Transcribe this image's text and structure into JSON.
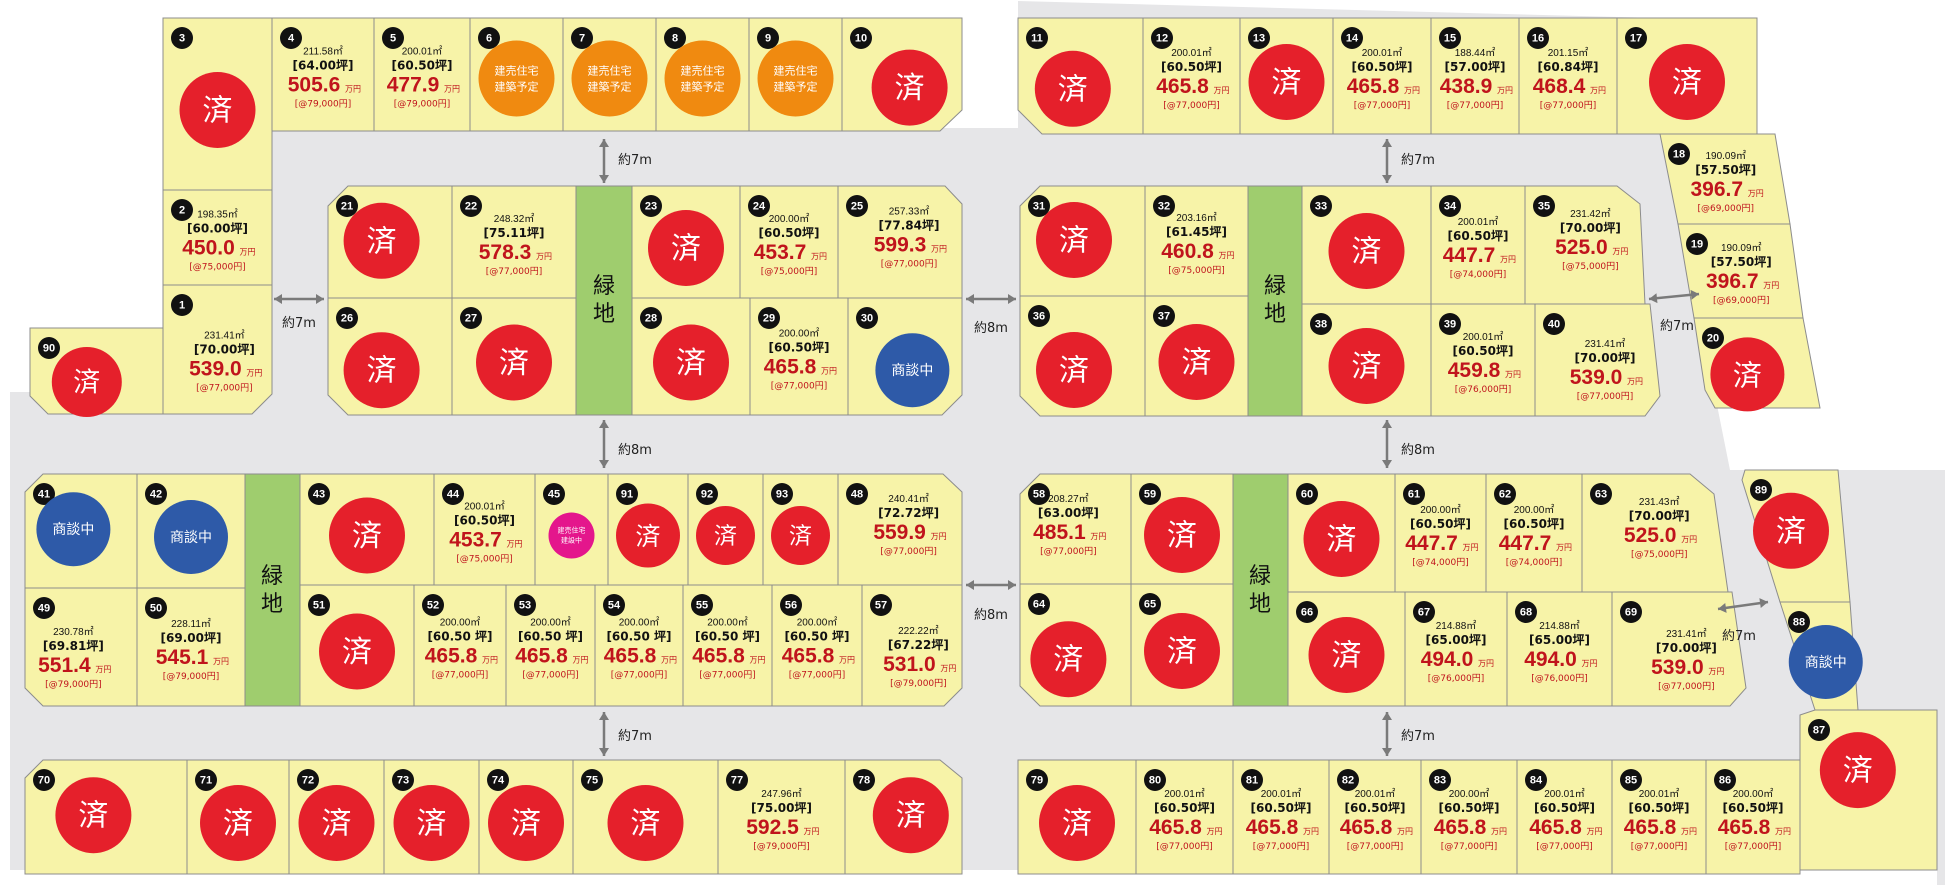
{
  "legend": {
    "sold": "済",
    "negotiating": "商談中",
    "planned": "建売住宅\n建築予定",
    "under_construction": "建売住宅\n建設中",
    "green_space": "緑地",
    "price_unit": "万円"
  },
  "roads": [
    {
      "label": "約7m"
    },
    {
      "label": "約7m"
    },
    {
      "label": "約7m"
    },
    {
      "label": "約8m"
    },
    {
      "label": "約7m"
    },
    {
      "label": "約8m"
    },
    {
      "label": "約8m"
    },
    {
      "label": "約8m"
    },
    {
      "label": "約7m"
    },
    {
      "label": "約7m"
    },
    {
      "label": "約7m"
    }
  ],
  "lots": [
    {
      "no": "3",
      "status": "sold"
    },
    {
      "no": "4",
      "area": "211.58㎡",
      "tsubo": "[64.00坪]",
      "price": "505.6",
      "unit": "[@79,000円]"
    },
    {
      "no": "5",
      "area": "200.01㎡",
      "tsubo": "[60.50坪]",
      "price": "477.9",
      "unit": "[@79,000円]"
    },
    {
      "no": "6",
      "status": "planned"
    },
    {
      "no": "7",
      "status": "planned"
    },
    {
      "no": "8",
      "status": "planned"
    },
    {
      "no": "9",
      "status": "planned"
    },
    {
      "no": "10",
      "status": "sold"
    },
    {
      "no": "2",
      "area": "198.35㎡",
      "tsubo": "[60.00坪]",
      "price": "450.0",
      "unit": "[@75,000円]"
    },
    {
      "no": "1",
      "area": "231.41㎡",
      "tsubo": "[70.00坪]",
      "price": "539.0",
      "unit": "[@77,000円]"
    },
    {
      "no": "90",
      "status": "sold"
    },
    {
      "no": "21",
      "status": "sold"
    },
    {
      "no": "22",
      "area": "248.32㎡",
      "tsubo": "[75.11坪]",
      "price": "578.3",
      "unit": "[@77,000円]"
    },
    {
      "no": "26",
      "status": "sold"
    },
    {
      "no": "27",
      "status": "sold"
    },
    {
      "no": "23",
      "status": "sold"
    },
    {
      "no": "24",
      "area": "200.00㎡",
      "tsubo": "[60.50坪]",
      "price": "453.7",
      "unit": "[@75,000円]"
    },
    {
      "no": "25",
      "area": "257.33㎡",
      "tsubo": "[77.84坪]",
      "price": "599.3",
      "unit": "[@77,000円]"
    },
    {
      "no": "28",
      "status": "sold"
    },
    {
      "no": "29",
      "area": "200.00㎡",
      "tsubo": "[60.50坪]",
      "price": "465.8",
      "unit": "[@77,000円]"
    },
    {
      "no": "30",
      "status": "negotiating"
    },
    {
      "no": "11",
      "status": "sold"
    },
    {
      "no": "12",
      "area": "200.01㎡",
      "tsubo": "[60.50坪]",
      "price": "465.8",
      "unit": "[@77,000円]"
    },
    {
      "no": "13",
      "status": "sold"
    },
    {
      "no": "14",
      "area": "200.01㎡",
      "tsubo": "[60.50坪]",
      "price": "465.8",
      "unit": "[@77,000円]"
    },
    {
      "no": "15",
      "area": "188.44㎡",
      "tsubo": "[57.00坪]",
      "price": "438.9",
      "unit": "[@77,000円]"
    },
    {
      "no": "16",
      "area": "201.15㎡",
      "tsubo": "[60.84坪]",
      "price": "468.4",
      "unit": "[@77,000円]"
    },
    {
      "no": "17",
      "status": "sold"
    },
    {
      "no": "18",
      "area": "190.09㎡",
      "tsubo": "[57.50坪]",
      "price": "396.7",
      "unit": "[@69,000円]"
    },
    {
      "no": "19",
      "area": "190.09㎡",
      "tsubo": "[57.50坪]",
      "price": "396.7",
      "unit": "[@69,000円]"
    },
    {
      "no": "20",
      "status": "sold"
    },
    {
      "no": "31",
      "status": "sold"
    },
    {
      "no": "32",
      "area": "203.16㎡",
      "tsubo": "[61.45坪]",
      "price": "460.8",
      "unit": "[@75,000円]"
    },
    {
      "no": "36",
      "status": "sold"
    },
    {
      "no": "37",
      "status": "sold"
    },
    {
      "no": "33",
      "status": "sold"
    },
    {
      "no": "34",
      "area": "200.01㎡",
      "tsubo": "[60.50坪]",
      "price": "447.7",
      "unit": "[@74,000円]"
    },
    {
      "no": "35",
      "area": "231.42㎡",
      "tsubo": "[70.00坪]",
      "price": "525.0",
      "unit": "[@75,000円]"
    },
    {
      "no": "38",
      "status": "sold"
    },
    {
      "no": "39",
      "area": "200.01㎡",
      "tsubo": "[60.50坪]",
      "price": "459.8",
      "unit": "[@76,000円]"
    },
    {
      "no": "40",
      "area": "231.41㎡",
      "tsubo": "[70.00坪]",
      "price": "539.0",
      "unit": "[@77,000円]"
    },
    {
      "no": "41",
      "status": "negotiating"
    },
    {
      "no": "42",
      "status": "negotiating"
    },
    {
      "no": "49",
      "area": "230.78㎡",
      "tsubo": "[69.81坪]",
      "price": "551.4",
      "unit": "[@79,000円]"
    },
    {
      "no": "50",
      "area": "228.11㎡",
      "tsubo": "[69.00坪]",
      "price": "545.1",
      "unit": "[@79,000円]"
    },
    {
      "no": "43",
      "status": "sold"
    },
    {
      "no": "44",
      "area": "200.01㎡",
      "tsubo": "[60.50坪]",
      "price": "453.7",
      "unit": "[@75,000円]"
    },
    {
      "no": "45",
      "status": "under_construction"
    },
    {
      "no": "91",
      "status": "sold"
    },
    {
      "no": "92",
      "status": "sold"
    },
    {
      "no": "93",
      "status": "sold"
    },
    {
      "no": "48",
      "area": "240.41㎡",
      "tsubo": "[72.72坪]",
      "price": "559.9",
      "unit": "[@77,000円]"
    },
    {
      "no": "51",
      "status": "sold"
    },
    {
      "no": "52",
      "area": "200.00㎡",
      "tsubo": "[60.50 坪]",
      "price": "465.8",
      "unit": "[@77,000円]"
    },
    {
      "no": "53",
      "area": "200.00㎡",
      "tsubo": "[60.50 坪]",
      "price": "465.8",
      "unit": "[@77,000円]"
    },
    {
      "no": "54",
      "area": "200.00㎡",
      "tsubo": "[60.50 坪]",
      "price": "465.8",
      "unit": "[@77,000円]"
    },
    {
      "no": "55",
      "area": "200.00㎡",
      "tsubo": "[60.50 坪]",
      "price": "465.8",
      "unit": "[@77,000円]"
    },
    {
      "no": "56",
      "area": "200.00㎡",
      "tsubo": "[60.50 坪]",
      "price": "465.8",
      "unit": "[@77,000円]"
    },
    {
      "no": "57",
      "area": "222.22㎡",
      "tsubo": "[67.22坪]",
      "price": "531.0",
      "unit": "[@79,000円]"
    },
    {
      "no": "58",
      "area": "208.27㎡",
      "tsubo": "[63.00坪]",
      "price": "485.1",
      "unit": "[@77,000円]"
    },
    {
      "no": "59",
      "status": "sold"
    },
    {
      "no": "64",
      "status": "sold"
    },
    {
      "no": "65",
      "status": "sold"
    },
    {
      "no": "60",
      "status": "sold"
    },
    {
      "no": "61",
      "area": "200.00㎡",
      "tsubo": "[60.50坪]",
      "price": "447.7",
      "unit": "[@74,000円]"
    },
    {
      "no": "62",
      "area": "200.00㎡",
      "tsubo": "[60.50坪]",
      "price": "447.7",
      "unit": "[@74,000円]"
    },
    {
      "no": "63",
      "area": "231.43㎡",
      "tsubo": "[70.00坪]",
      "price": "525.0",
      "unit": "[@75,000円]"
    },
    {
      "no": "66",
      "status": "sold"
    },
    {
      "no": "67",
      "area": "214.88㎡",
      "tsubo": "[65.00坪]",
      "price": "494.0",
      "unit": "[@76,000円]"
    },
    {
      "no": "68",
      "area": "214.88㎡",
      "tsubo": "[65.00坪]",
      "price": "494.0",
      "unit": "[@76,000円]"
    },
    {
      "no": "69",
      "area": "231.41㎡",
      "tsubo": "[70.00坪]",
      "price": "539.0",
      "unit": "[@77,000円]"
    },
    {
      "no": "89",
      "status": "sold"
    },
    {
      "no": "88",
      "status": "negotiating"
    },
    {
      "no": "87",
      "status": "sold"
    },
    {
      "no": "70",
      "status": "sold"
    },
    {
      "no": "71",
      "status": "sold"
    },
    {
      "no": "72",
      "status": "sold"
    },
    {
      "no": "73",
      "status": "sold"
    },
    {
      "no": "74",
      "status": "sold"
    },
    {
      "no": "75",
      "status": "sold"
    },
    {
      "no": "77",
      "area": "247.96㎡",
      "tsubo": "[75.00坪]",
      "price": "592.5",
      "unit": "[@79,000円]"
    },
    {
      "no": "78",
      "status": "sold"
    },
    {
      "no": "79",
      "status": "sold"
    },
    {
      "no": "80",
      "area": "200.01㎡",
      "tsubo": "[60.50坪]",
      "price": "465.8",
      "unit": "[@77,000円]"
    },
    {
      "no": "81",
      "area": "200.01㎡",
      "tsubo": "[60.50坪]",
      "price": "465.8",
      "unit": "[@77,000円]"
    },
    {
      "no": "82",
      "area": "200.01㎡",
      "tsubo": "[60.50坪]",
      "price": "465.8",
      "unit": "[@77,000円]"
    },
    {
      "no": "83",
      "area": "200.00㎡",
      "tsubo": "[60.50坪]",
      "price": "465.8",
      "unit": "[@77,000円]"
    },
    {
      "no": "84",
      "area": "200.01㎡",
      "tsubo": "[60.50坪]",
      "price": "465.8",
      "unit": "[@77,000円]"
    },
    {
      "no": "85",
      "area": "200.01㎡",
      "tsubo": "[60.50坪]",
      "price": "465.8",
      "unit": "[@77,000円]"
    },
    {
      "no": "86",
      "area": "200.00㎡",
      "tsubo": "[60.50坪]",
      "price": "465.8",
      "unit": "[@77,000円]"
    }
  ]
}
